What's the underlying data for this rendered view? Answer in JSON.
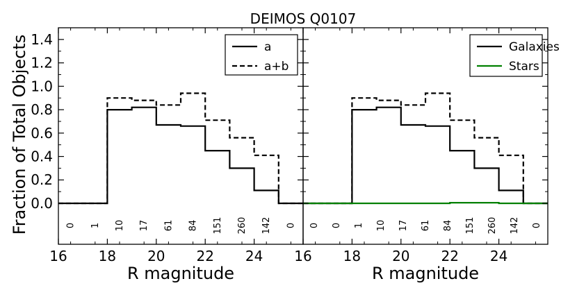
{
  "chart_data": [
    {
      "type": "line",
      "style": "step histogram",
      "title": "DEIMOS Q0107",
      "xlabel": "R magnitude",
      "ylabel": "Fraction of Total Objects",
      "xlim": [
        16,
        26
      ],
      "ylim": [
        -0.35,
        1.5
      ],
      "xticks": [
        16,
        18,
        20,
        22,
        24
      ],
      "xtick_labels": [
        "16",
        "18",
        "20",
        "22",
        "24"
      ],
      "yticks": [
        0.0,
        0.2,
        0.4,
        0.6,
        0.8,
        1.0,
        1.2,
        1.4
      ],
      "ytick_labels": [
        "0.0",
        "0.2",
        "0.4",
        "0.6",
        "0.8",
        "1.0",
        "1.2",
        "1.4"
      ],
      "bin_edges": [
        16,
        17,
        18,
        19,
        20,
        21,
        22,
        23,
        24,
        25,
        26
      ],
      "series": [
        {
          "name": "a",
          "color": "#000000",
          "dash": "solid",
          "values": [
            0,
            0,
            0.8,
            0.82,
            0.67,
            0.66,
            0.45,
            0.3,
            0.11,
            0,
            0
          ]
        },
        {
          "name": "a+b",
          "color": "#000000",
          "dash": "dashed",
          "values": [
            0,
            0,
            0.9,
            0.88,
            0.84,
            0.94,
            0.71,
            0.56,
            0.41,
            0,
            0
          ]
        }
      ],
      "counts": [
        "0",
        "1",
        "10",
        "17",
        "61",
        "84",
        "151",
        "260",
        "142",
        "0"
      ],
      "legend": {
        "position": "top-right"
      },
      "grid": false
    },
    {
      "type": "line",
      "style": "step histogram",
      "title": "",
      "xlabel": "R magnitude",
      "ylabel": "",
      "xlim": [
        16,
        26
      ],
      "ylim": [
        -0.35,
        1.5
      ],
      "xticks": [
        16,
        18,
        20,
        22,
        24
      ],
      "xtick_labels": [
        "16",
        "18",
        "20",
        "22",
        "24"
      ],
      "bin_edges": [
        16,
        17,
        18,
        19,
        20,
        21,
        22,
        23,
        24,
        25,
        26
      ],
      "series": [
        {
          "name": "Galaxies",
          "color": "#000000",
          "dash": "solid",
          "values": [
            0,
            0,
            0.8,
            0.82,
            0.67,
            0.66,
            0.45,
            0.3,
            0.11,
            0,
            0
          ]
        },
        {
          "name": "",
          "color": "#000000",
          "dash": "dashed",
          "values": [
            0,
            0,
            0.9,
            0.88,
            0.84,
            0.94,
            0.71,
            0.56,
            0.41,
            0,
            0
          ]
        },
        {
          "name": "Stars",
          "color": "#008000",
          "dash": "solid",
          "values": [
            0,
            0,
            0,
            0,
            0,
            0,
            0.005,
            0.005,
            0,
            0,
            0
          ]
        }
      ],
      "counts": [
        "0",
        "0",
        "1",
        "10",
        "17",
        "61",
        "84",
        "151",
        "260",
        "142",
        "0"
      ],
      "legend": {
        "position": "top-right"
      },
      "grid": false
    }
  ]
}
